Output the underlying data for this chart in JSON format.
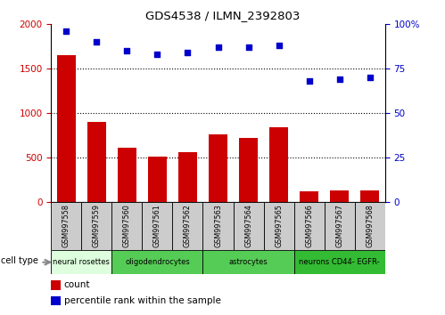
{
  "title": "GDS4538 / ILMN_2392803",
  "samples": [
    "GSM997558",
    "GSM997559",
    "GSM997560",
    "GSM997561",
    "GSM997562",
    "GSM997563",
    "GSM997564",
    "GSM997565",
    "GSM997566",
    "GSM997567",
    "GSM997568"
  ],
  "counts": [
    1650,
    900,
    610,
    510,
    560,
    760,
    720,
    835,
    120,
    130,
    130
  ],
  "percentiles": [
    96,
    90,
    85,
    83,
    84,
    87,
    87,
    88,
    68,
    69,
    70
  ],
  "bar_color": "#cc0000",
  "dot_color": "#0000cc",
  "ylim_left": [
    0,
    2000
  ],
  "ylim_right": [
    0,
    100
  ],
  "yticks_left": [
    0,
    500,
    1000,
    1500,
    2000
  ],
  "yticks_right": [
    0,
    25,
    50,
    75,
    100
  ],
  "cell_types": [
    {
      "label": "neural rosettes",
      "start": 0,
      "end": 2,
      "color": "#ddffdd"
    },
    {
      "label": "oligodendrocytes",
      "start": 2,
      "end": 5,
      "color": "#55cc55"
    },
    {
      "label": "astrocytes",
      "start": 5,
      "end": 8,
      "color": "#55cc55"
    },
    {
      "label": "neurons CD44- EGFR-",
      "start": 8,
      "end": 11,
      "color": "#33bb33"
    }
  ],
  "legend_count_label": "count",
  "legend_pct_label": "percentile rank within the sample",
  "cell_type_label": "cell type",
  "tick_label_color_left": "#cc0000",
  "tick_label_color_right": "#0000cc",
  "sample_box_color": "#cccccc",
  "grid_yticks": [
    500,
    1000,
    1500
  ]
}
